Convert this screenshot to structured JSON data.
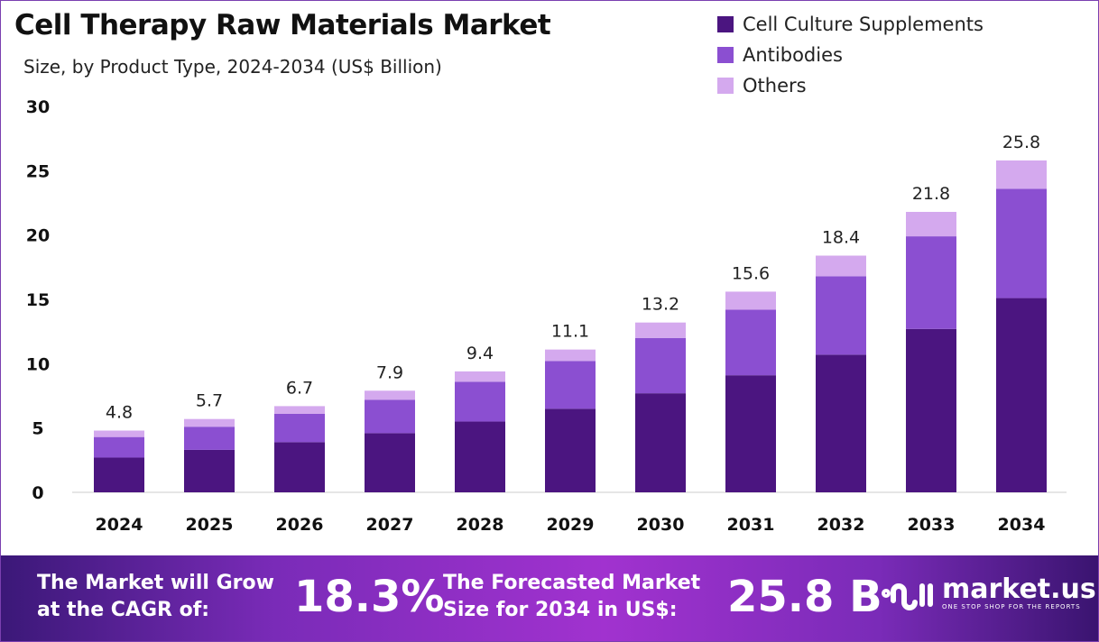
{
  "chart_data": {
    "type": "bar",
    "stacked": true,
    "title": "Cell Therapy Raw Materials Market",
    "subtitle": "Size, by Product Type, 2024-2034 (US$ Billion)",
    "categories": [
      "2024",
      "2025",
      "2026",
      "2027",
      "2028",
      "2029",
      "2030",
      "2031",
      "2032",
      "2033",
      "2034"
    ],
    "series": [
      {
        "name": "Cell Culture Supplements",
        "color": "#4b1580",
        "values": [
          2.7,
          3.3,
          3.9,
          4.6,
          5.5,
          6.5,
          7.7,
          9.1,
          10.7,
          12.7,
          15.1
        ]
      },
      {
        "name": "Antibodies",
        "color": "#8b4fd1",
        "values": [
          1.6,
          1.8,
          2.2,
          2.6,
          3.1,
          3.7,
          4.3,
          5.1,
          6.1,
          7.2,
          8.5
        ]
      },
      {
        "name": "Others",
        "color": "#d4a9ee",
        "values": [
          0.5,
          0.6,
          0.6,
          0.7,
          0.8,
          0.9,
          1.2,
          1.4,
          1.6,
          1.9,
          2.2
        ]
      }
    ],
    "totals": [
      "4.8",
      "5.7",
      "6.7",
      "7.9",
      "9.4",
      "11.1",
      "13.2",
      "15.6",
      "18.4",
      "21.8",
      "25.8"
    ],
    "yticks": [
      "0",
      "5",
      "10",
      "15",
      "20",
      "25",
      "30"
    ],
    "ylim": [
      0,
      30
    ],
    "grid": false,
    "legend": "top-right"
  },
  "footer": {
    "cagr_text_1": "The Market will Grow",
    "cagr_text_2": "at the CAGR of:",
    "cagr": "18.3%",
    "size_text_1": "The Forecasted Market",
    "size_text_2": "Size for 2034 in US$:",
    "size": "25.8 B",
    "brand": "market.us",
    "tagline": "ONE STOP SHOP FOR THE REPORTS"
  }
}
